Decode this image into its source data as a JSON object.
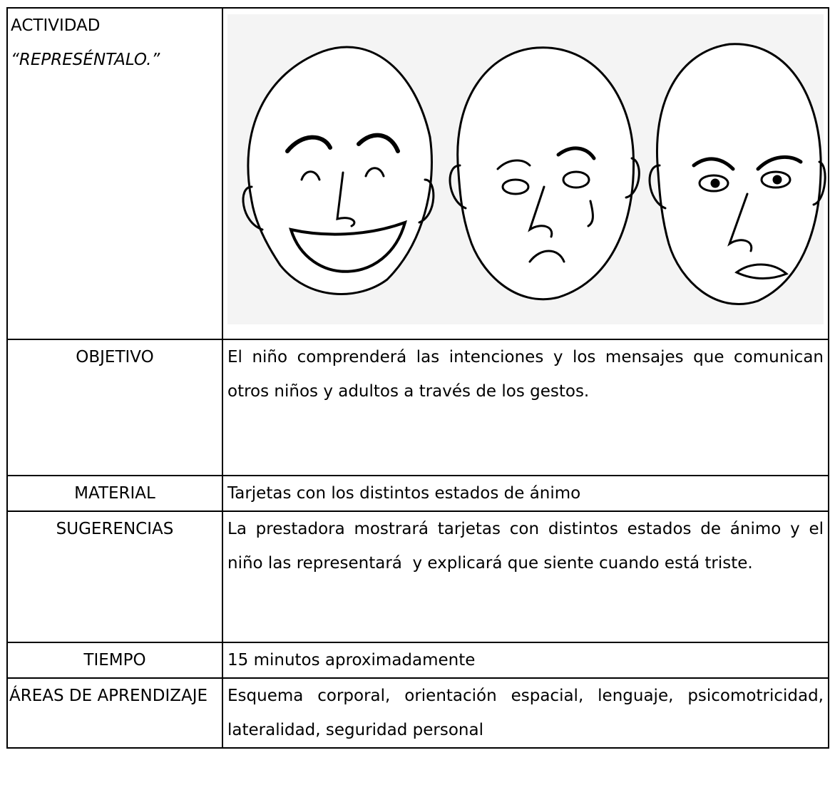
{
  "activity": {
    "label": "ACTIVIDAD",
    "name": "“REPRESÉNTALO.”"
  },
  "table": {
    "rows": [
      [
        "OBJETIVO",
        "El niño comprenderá las intenciones y los mensajes que comunican otros niños y adultos a través de los gestos."
      ],
      [
        "MATERIAL",
        "Tarjetas con los distintos estados de ánimo"
      ],
      [
        "SUGERENCIAS",
        "La prestadora mostrará tarjetas con distintos estados de ánimo y el niño las representará  y explicará que siente cuando está triste."
      ],
      [
        "TIEMPO",
        "15 minutos aproximadamente"
      ],
      [
        "ÁREAS DE APRENDIZAJE",
        "Esquema corporal, orientación espacial, lenguaje, psicomotricidad, lateralidad, seguridad personal"
      ]
    ]
  }
}
